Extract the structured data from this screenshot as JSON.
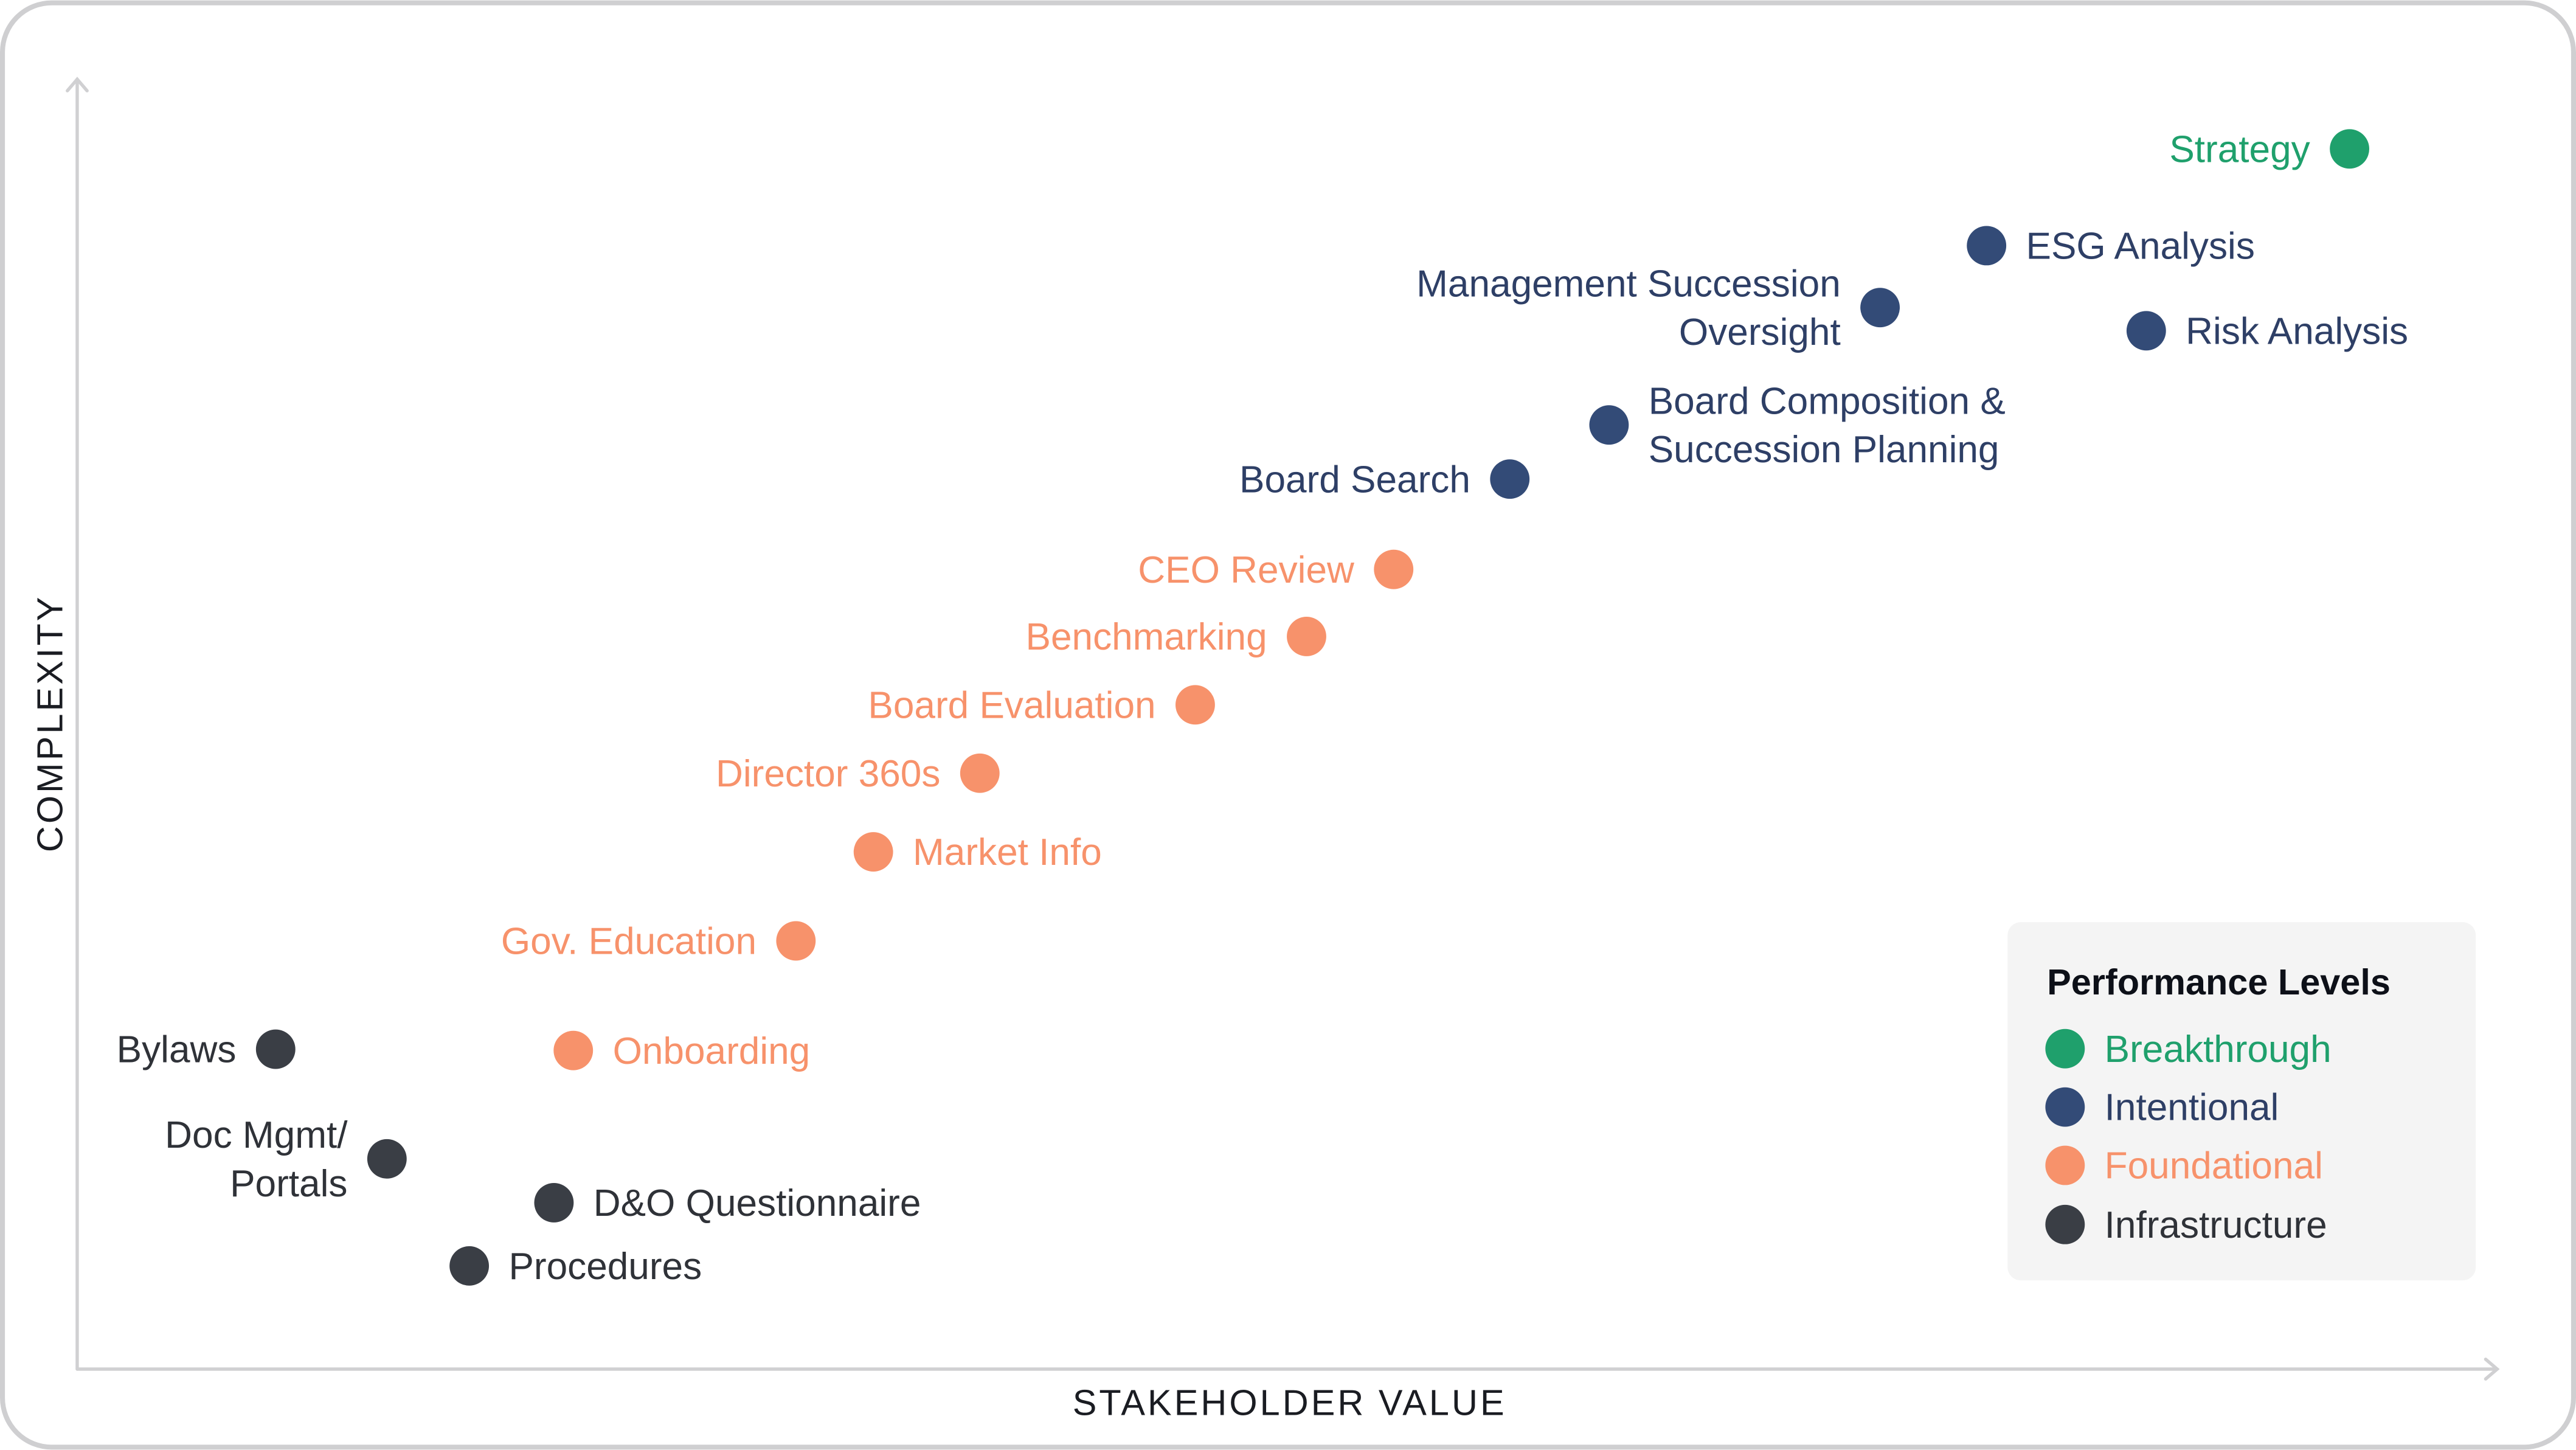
{
  "chart_data": {
    "type": "scatter",
    "title": "",
    "xlabel": "STAKEHOLDER VALUE",
    "ylabel": "COMPLEXITY",
    "xlim": [
      0,
      100
    ],
    "ylim": [
      0,
      100
    ],
    "grid": false,
    "ticks": false,
    "legend": {
      "title": "Performance Levels",
      "placement": "bottom-right",
      "entries": [
        {
          "name": "Breakthrough",
          "color": "#1fa06c"
        },
        {
          "name": "Intentional",
          "color": "#334b77"
        },
        {
          "name": "Foundational",
          "color": "#f7926b"
        },
        {
          "name": "Infrastructure",
          "color": "#3a3e45"
        }
      ]
    },
    "points": [
      {
        "label": [
          "Strategy"
        ],
        "level": "Breakthrough",
        "x": 93.9,
        "y": 94.6,
        "label_side": "left"
      },
      {
        "label": [
          "ESG Analysis"
        ],
        "level": "Intentional",
        "x": 78.9,
        "y": 87.1,
        "label_side": "right"
      },
      {
        "label": [
          "Management Succession",
          "Oversight"
        ],
        "level": "Intentional",
        "x": 74.5,
        "y": 82.3,
        "label_side": "left"
      },
      {
        "label": [
          "Risk Analysis"
        ],
        "level": "Intentional",
        "x": 85.5,
        "y": 80.5,
        "label_side": "right"
      },
      {
        "label": [
          "Board Composition &",
          "Succession Planning"
        ],
        "level": "Intentional",
        "x": 63.3,
        "y": 73.2,
        "label_side": "right"
      },
      {
        "label": [
          "Board Search"
        ],
        "level": "Intentional",
        "x": 59.2,
        "y": 69.0,
        "label_side": "left"
      },
      {
        "label": [
          "CEO Review"
        ],
        "level": "Foundational",
        "x": 54.4,
        "y": 62.0,
        "label_side": "left"
      },
      {
        "label": [
          "Benchmarking"
        ],
        "level": "Foundational",
        "x": 50.8,
        "y": 56.8,
        "label_side": "left"
      },
      {
        "label": [
          "Board Evaluation"
        ],
        "level": "Foundational",
        "x": 46.2,
        "y": 51.5,
        "label_side": "left"
      },
      {
        "label": [
          "Director 360s"
        ],
        "level": "Foundational",
        "x": 37.3,
        "y": 46.2,
        "label_side": "left"
      },
      {
        "label": [
          "Market Info"
        ],
        "level": "Foundational",
        "x": 32.9,
        "y": 40.1,
        "label_side": "right"
      },
      {
        "label": [
          "Gov. Education"
        ],
        "level": "Foundational",
        "x": 29.7,
        "y": 33.2,
        "label_side": "left"
      },
      {
        "label": [
          "Onboarding"
        ],
        "level": "Foundational",
        "x": 20.5,
        "y": 24.7,
        "label_side": "right"
      },
      {
        "label": [
          "Bylaws"
        ],
        "level": "Infrastructure",
        "x": 8.2,
        "y": 24.8,
        "label_side": "left"
      },
      {
        "label": [
          "Doc Mgmt/",
          "Portals"
        ],
        "level": "Infrastructure",
        "x": 12.8,
        "y": 16.3,
        "label_side": "left"
      },
      {
        "label": [
          "D&O Questionnaire"
        ],
        "level": "Infrastructure",
        "x": 19.7,
        "y": 12.9,
        "label_side": "right"
      },
      {
        "label": [
          "Procedures"
        ],
        "level": "Infrastructure",
        "x": 16.2,
        "y": 8.0,
        "label_side": "right"
      }
    ]
  }
}
